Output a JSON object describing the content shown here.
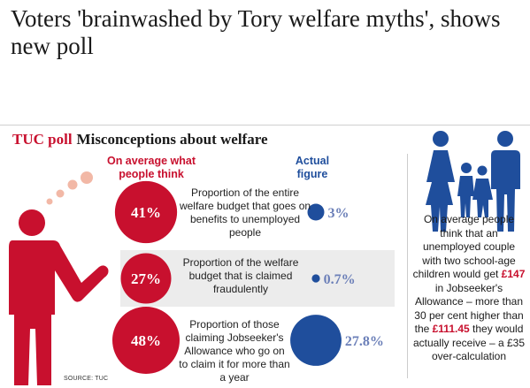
{
  "headline": "Voters 'brainwashed by Tory welfare myths', shows new poll",
  "graphic": {
    "title_kicker": "TUC poll",
    "title_main": "Misconceptions about welfare",
    "source": "SOURCE: TUC",
    "side_note": {
      "part1": "On average people think that an unemployed couple with two school-age children would get ",
      "highlight1": "£147",
      "part2": " in Jobseeker's Allowance – more than 30 per cent higher than the ",
      "highlight2": "£111.45",
      "part3": " they would actually receive – a £35 over-calculation"
    }
  },
  "colors": {
    "perceived": "#c8102e",
    "actual": "#1f4e9c",
    "figure": "#c8102e",
    "family": "#1f4e9c",
    "thought_bubble": "#f2b8a6"
  },
  "icons": [
    "person-thinking-icon",
    "thought-bubble-icon",
    "family-icon"
  ],
  "chart_data": {
    "type": "bubble",
    "series": [
      {
        "name": "On average what people think",
        "values": [
          41,
          27,
          48
        ],
        "labels": [
          "41%",
          "27%",
          "48%"
        ]
      },
      {
        "name": "Actual figure",
        "values": [
          3,
          0.7,
          27.8
        ],
        "labels": [
          "3%",
          "0.7%",
          "27.8%"
        ]
      }
    ],
    "categories": [
      "Proportion of the entire welfare budget that goes on benefits to unemployed people",
      "Proportion of the welfare budget that is claimed fraudulently",
      "Proportion of those claiming Jobseeker's Allowance who go on to claim it for more than a year"
    ]
  }
}
